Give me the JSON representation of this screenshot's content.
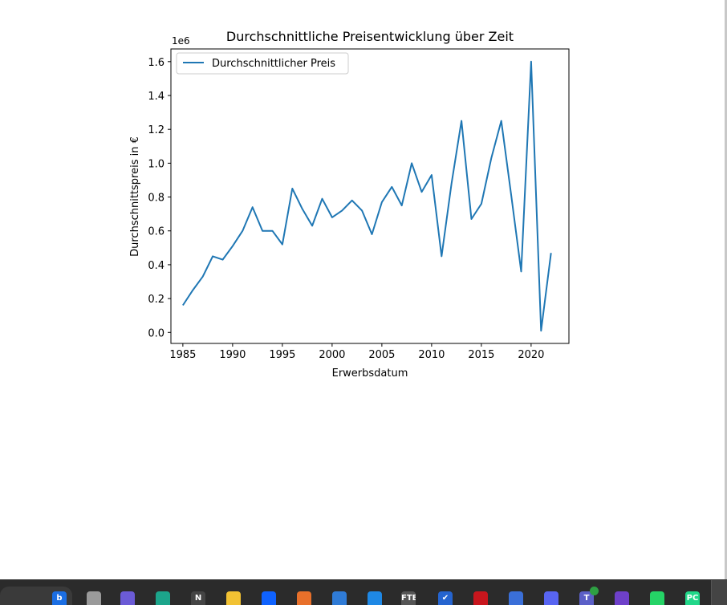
{
  "chart_data": {
    "type": "line",
    "title": "Durchschnittliche Preisentwicklung über Zeit",
    "xlabel": "Erwerbsdatum",
    "ylabel": "Durchschnittspreis in €",
    "offset_label": "1e6",
    "xlim": [
      1983.8,
      2023.8
    ],
    "ylim": [
      -0.065,
      1.675
    ],
    "xticks": [
      1985,
      1990,
      1995,
      2000,
      2005,
      2010,
      2015,
      2020
    ],
    "yticks": [
      0.0,
      0.2,
      0.4,
      0.6,
      0.8,
      1.0,
      1.2,
      1.4,
      1.6
    ],
    "yticklabels": [
      "0.0",
      "0.2",
      "0.4",
      "0.6",
      "0.8",
      "1.0",
      "1.2",
      "1.4",
      "1.6"
    ],
    "legend_position": "upper left",
    "grid": false,
    "series": [
      {
        "name": "Durchschnittlicher Preis",
        "color": "#1f77b4",
        "x": [
          1985,
          1986,
          1987,
          1988,
          1989,
          1990,
          1991,
          1992,
          1993,
          1994,
          1995,
          1996,
          1997,
          1998,
          1999,
          2000,
          2001,
          2002,
          2003,
          2004,
          2005,
          2006,
          2007,
          2008,
          2009,
          2010,
          2011,
          2012,
          2013,
          2014,
          2015,
          2016,
          2017,
          2018,
          2019,
          2020,
          2021,
          2022
        ],
        "y": [
          0.16,
          0.25,
          0.33,
          0.45,
          0.43,
          0.51,
          0.6,
          0.74,
          0.6,
          0.6,
          0.52,
          0.85,
          0.73,
          0.63,
          0.79,
          0.68,
          0.72,
          0.78,
          0.72,
          0.58,
          0.77,
          0.86,
          0.75,
          1.0,
          0.83,
          0.93,
          0.45,
          0.88,
          1.25,
          0.67,
          0.76,
          1.03,
          1.25,
          0.81,
          0.36,
          1.6,
          0.01,
          0.47
        ]
      }
    ]
  },
  "taskbar": {
    "icons": [
      {
        "name": "bing-icon",
        "color": "#1b6ee3",
        "glyph": "b"
      },
      {
        "name": "task-view-icon",
        "color": "#9a9a9a",
        "glyph": ""
      },
      {
        "name": "meet-icon",
        "color": "#6b5bd6",
        "glyph": ""
      },
      {
        "name": "edge-icon",
        "color": "#1ca58b",
        "glyph": ""
      },
      {
        "name": "notion-icon",
        "color": "#444444",
        "glyph": "N"
      },
      {
        "name": "file-explorer-icon",
        "color": "#f2c233",
        "glyph": ""
      },
      {
        "name": "dropbox-icon",
        "color": "#0f62fe",
        "glyph": ""
      },
      {
        "name": "firefox-icon",
        "color": "#e8702a",
        "glyph": ""
      },
      {
        "name": "store-icon",
        "color": "#2f7bd6",
        "glyph": ""
      },
      {
        "name": "mail-icon",
        "color": "#1e88e5",
        "glyph": ""
      },
      {
        "name": "ftb-icon",
        "color": "#555555",
        "glyph": "FTB"
      },
      {
        "name": "todo-icon",
        "color": "#2564cf",
        "glyph": "✔"
      },
      {
        "name": "acrobat-icon",
        "color": "#c8161d",
        "glyph": ""
      },
      {
        "name": "power-automate-icon",
        "color": "#3a6fd8",
        "glyph": ""
      },
      {
        "name": "discord-icon",
        "color": "#5865f2",
        "glyph": ""
      },
      {
        "name": "teams-icon",
        "color": "#5b5fc7",
        "glyph": "T"
      },
      {
        "name": "github-icon",
        "color": "#6e40c9",
        "glyph": ""
      },
      {
        "name": "whatsapp-icon",
        "color": "#25d366",
        "glyph": ""
      },
      {
        "name": "pycharm-icon",
        "color": "#21d789",
        "glyph": "PC"
      }
    ]
  }
}
